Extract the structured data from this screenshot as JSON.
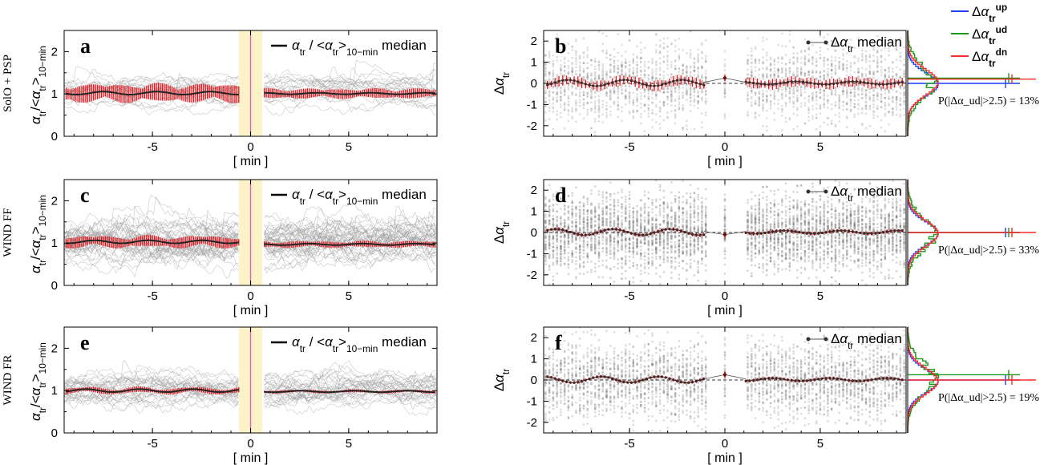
{
  "figure": {
    "xlabel": "[ min ]",
    "left_ylabel": "α_tr/<α_tr>_10−min",
    "right_ylabel": "Δα_tr"
  },
  "legend": {
    "left_text": "α_tr / <α_tr>_10−min median",
    "right_text": "Δα_tr median",
    "hist": [
      {
        "label": "Δα_tr^up",
        "color": "#1f3fff"
      },
      {
        "label": "Δα_tr^ud",
        "color": "#1a9a1a"
      },
      {
        "label": "Δα_tr^dn",
        "color": "#ff2a2a"
      }
    ]
  },
  "colors": {
    "median": "#222222",
    "errorbar": "#e8141b",
    "zero_line": "#e060c0",
    "gap_fill": "#fdf3c8",
    "traces": "#9a9a9a"
  },
  "rows": [
    {
      "row_label": "SolO + PSP",
      "left_panel": "a",
      "right_panel": "b",
      "trace_density": 0.5,
      "left_spread": 0.16,
      "right_spread": 0.16,
      "probability_text": "P(|Δα_ud|>2.5) = 13%",
      "hist_peak_ud": 0.25,
      "hist_peak_up": 0.0,
      "hist_peak_dn": 0.2
    },
    {
      "row_label": "WIND FF",
      "left_panel": "c",
      "right_panel": "d",
      "trace_density": 1.0,
      "left_spread": 0.1,
      "right_spread": 0.06,
      "probability_text": "P(|Δα_ud|>2.5) = 33%",
      "hist_peak_ud": 0.0,
      "hist_peak_up": 0.0,
      "hist_peak_dn": 0.0
    },
    {
      "row_label": "WIND FR",
      "left_panel": "e",
      "right_panel": "f",
      "trace_density": 0.7,
      "left_spread": 0.05,
      "right_spread": 0.05,
      "probability_text": "P(|Δα_ud|>2.5) = 19%",
      "hist_peak_ud": 0.25,
      "hist_peak_up": 0.0,
      "hist_peak_dn": 0.0
    }
  ],
  "chart_data": [
    {
      "type": "line",
      "panel": "a",
      "title": "",
      "xlabel": "[ min ]",
      "ylabel": "α_tr/<α_tr>_10−min",
      "xlim": [
        -9.5,
        9.5
      ],
      "ylim": [
        0,
        2.5
      ],
      "xticks": [
        -5,
        0,
        5
      ],
      "yticks": [
        0,
        1,
        2
      ],
      "gap_min": [
        -0.6,
        0.6
      ],
      "median_pre": 1.02,
      "median_post": 1.01,
      "series": [
        {
          "name": "α_tr / <α_tr>_10−min median",
          "x_range": [
            -9.5,
            9.5
          ],
          "approx_value": 1.0
        }
      ]
    },
    {
      "type": "scatter",
      "panel": "b",
      "title": "",
      "xlabel": "[ min ]",
      "ylabel": "Δα_tr",
      "xlim": [
        -9.5,
        9.5
      ],
      "ylim": [
        -2.5,
        2.5
      ],
      "xticks": [
        -5,
        0,
        5
      ],
      "yticks": [
        -2,
        -1,
        0,
        1,
        2
      ],
      "gap_min": [
        -1.0,
        1.0
      ],
      "series": [
        {
          "name": "Δα_tr median",
          "approx_value": 0.0
        }
      ],
      "center_point": 0.25
    },
    {
      "type": "line",
      "panel": "c",
      "title": "",
      "xlabel": "[ min ]",
      "ylabel": "α_tr/<α_tr>_10−min",
      "xlim": [
        -9.5,
        9.5
      ],
      "ylim": [
        0,
        2.5
      ],
      "xticks": [
        -5,
        0,
        5
      ],
      "yticks": [
        0,
        1,
        2
      ],
      "gap_min": [
        -0.6,
        0.6
      ],
      "median_pre": 1.03,
      "median_post": 0.97,
      "series": [
        {
          "name": "α_tr / <α_tr>_10−min median",
          "x_range": [
            -9.5,
            9.5
          ],
          "approx_value": 1.0
        }
      ]
    },
    {
      "type": "scatter",
      "panel": "d",
      "title": "",
      "xlabel": "[ min ]",
      "ylabel": "Δα_tr",
      "xlim": [
        -9.5,
        9.5
      ],
      "ylim": [
        -2.5,
        2.5
      ],
      "xticks": [
        -5,
        0,
        5
      ],
      "yticks": [
        -2,
        -1,
        0,
        1,
        2
      ],
      "gap_min": [
        -1.0,
        1.0
      ],
      "series": [
        {
          "name": "Δα_tr median",
          "approx_value": 0.0
        }
      ],
      "center_point": -0.1
    },
    {
      "type": "line",
      "panel": "e",
      "title": "",
      "xlabel": "[ min ]",
      "ylabel": "α_tr/<α_tr>_10−min",
      "xlim": [
        -9.5,
        9.5
      ],
      "ylim": [
        0,
        2.5
      ],
      "xticks": [
        -5,
        0,
        5
      ],
      "yticks": [
        0,
        1,
        2
      ],
      "gap_min": [
        -0.6,
        0.6
      ],
      "median_pre": 1.0,
      "median_post": 0.98,
      "series": [
        {
          "name": "α_tr / <α_tr>_10−min median",
          "x_range": [
            -9.5,
            9.5
          ],
          "approx_value": 1.0
        }
      ]
    },
    {
      "type": "scatter",
      "panel": "f",
      "title": "",
      "xlabel": "[ min ]",
      "ylabel": "Δα_tr",
      "xlim": [
        -9.5,
        9.5
      ],
      "ylim": [
        -2.5,
        2.5
      ],
      "xticks": [
        -5,
        0,
        5
      ],
      "yticks": [
        -2,
        -1,
        0,
        1,
        2
      ],
      "gap_min": [
        -1.0,
        1.0
      ],
      "series": [
        {
          "name": "Δα_tr median",
          "approx_value": 0.0
        }
      ],
      "center_point": 0.25
    }
  ]
}
